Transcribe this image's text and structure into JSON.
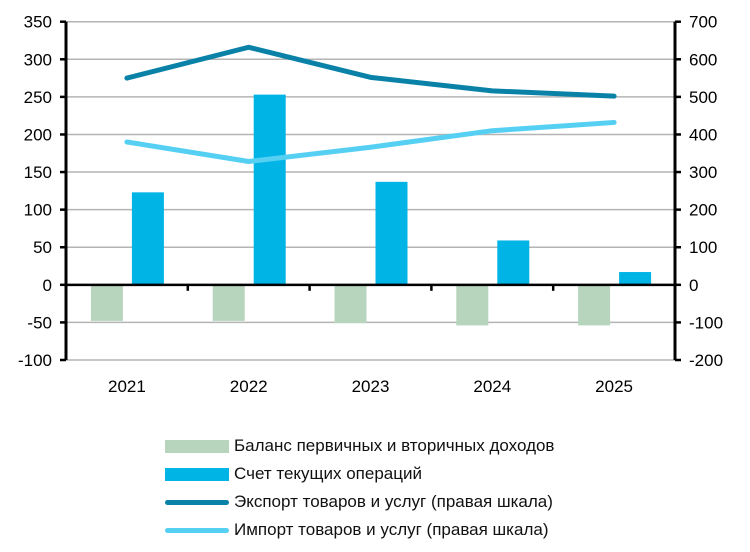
{
  "chart_data": {
    "type": "bar+line",
    "title": "",
    "categories": [
      "2021",
      "2022",
      "2023",
      "2024",
      "2025"
    ],
    "left_axis": {
      "ylim": [
        -100,
        350
      ],
      "ticks": [
        "350",
        "300",
        "250",
        "200",
        "150",
        "100",
        "50",
        "0",
        "-50",
        "-100"
      ]
    },
    "right_axis": {
      "ylim": [
        -200,
        700
      ],
      "ticks": [
        "700",
        "600",
        "500",
        "400",
        "300",
        "200",
        "100",
        "0",
        "-100",
        "-200"
      ]
    },
    "grid": true,
    "legend_position": "bottom",
    "series": [
      {
        "name": "Баланс первичных и вторичных доходов",
        "type": "bar",
        "axis": "left",
        "color": "#b7d5bd",
        "values": [
          -48,
          -48,
          -51,
          -54,
          -54
        ]
      },
      {
        "name": "Счет текущих операций",
        "type": "bar",
        "axis": "left",
        "color": "#00b4e6",
        "values": [
          123,
          253,
          137,
          59,
          17
        ]
      },
      {
        "name": "Экспорт товаров и услуг (правая шкала)",
        "type": "line",
        "axis": "right",
        "color": "#0a82a8",
        "values": [
          550,
          632,
          552,
          516,
          502
        ]
      },
      {
        "name": "Импорт товаров и услуг (правая шкала)",
        "type": "line",
        "axis": "right",
        "color": "#55d0f3",
        "values": [
          380,
          328,
          366,
          410,
          432
        ]
      }
    ]
  }
}
